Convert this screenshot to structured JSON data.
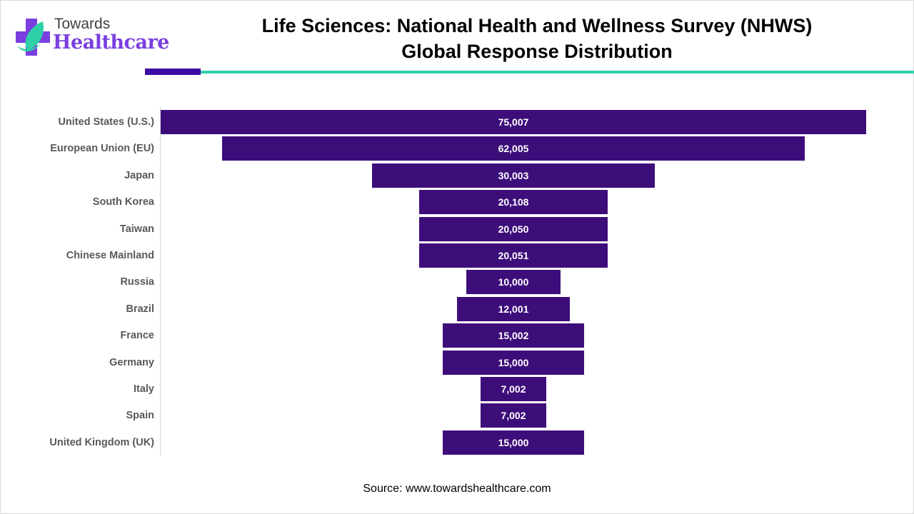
{
  "logo": {
    "top": "Towards",
    "main": "Healthcare"
  },
  "chart_data": {
    "type": "bar",
    "orientation": "horizontal-centered (funnel)",
    "title": "Life Sciences: National Health and Wellness Survey (NHWS) Global Response Distribution",
    "title_lines": [
      "Life Sciences: National Health and Wellness Survey (NHWS)",
      "Global Response Distribution"
    ],
    "categories": [
      "United States (U.S.)",
      "European Union (EU)",
      "Japan",
      "South Korea",
      "Taiwan",
      "Chinese Mainland",
      "Russia",
      "Brazil",
      "France",
      "Germany",
      "Italy",
      "Spain",
      "United Kingdom (UK)"
    ],
    "values": [
      75007,
      62005,
      30003,
      20108,
      20050,
      20051,
      10000,
      12001,
      15002,
      15000,
      7002,
      7002,
      15000
    ],
    "labels": [
      "75,007",
      "62,005",
      "30,003",
      "20,108",
      "20,050",
      "20,051",
      "10,000",
      "12,001",
      "15,002",
      "15,000",
      "7,002",
      "7,002",
      "15,000"
    ],
    "xlabel": "",
    "ylabel": "",
    "bar_color": "#3d0e7a"
  },
  "source": "Source: www.towardshealthcare.com"
}
